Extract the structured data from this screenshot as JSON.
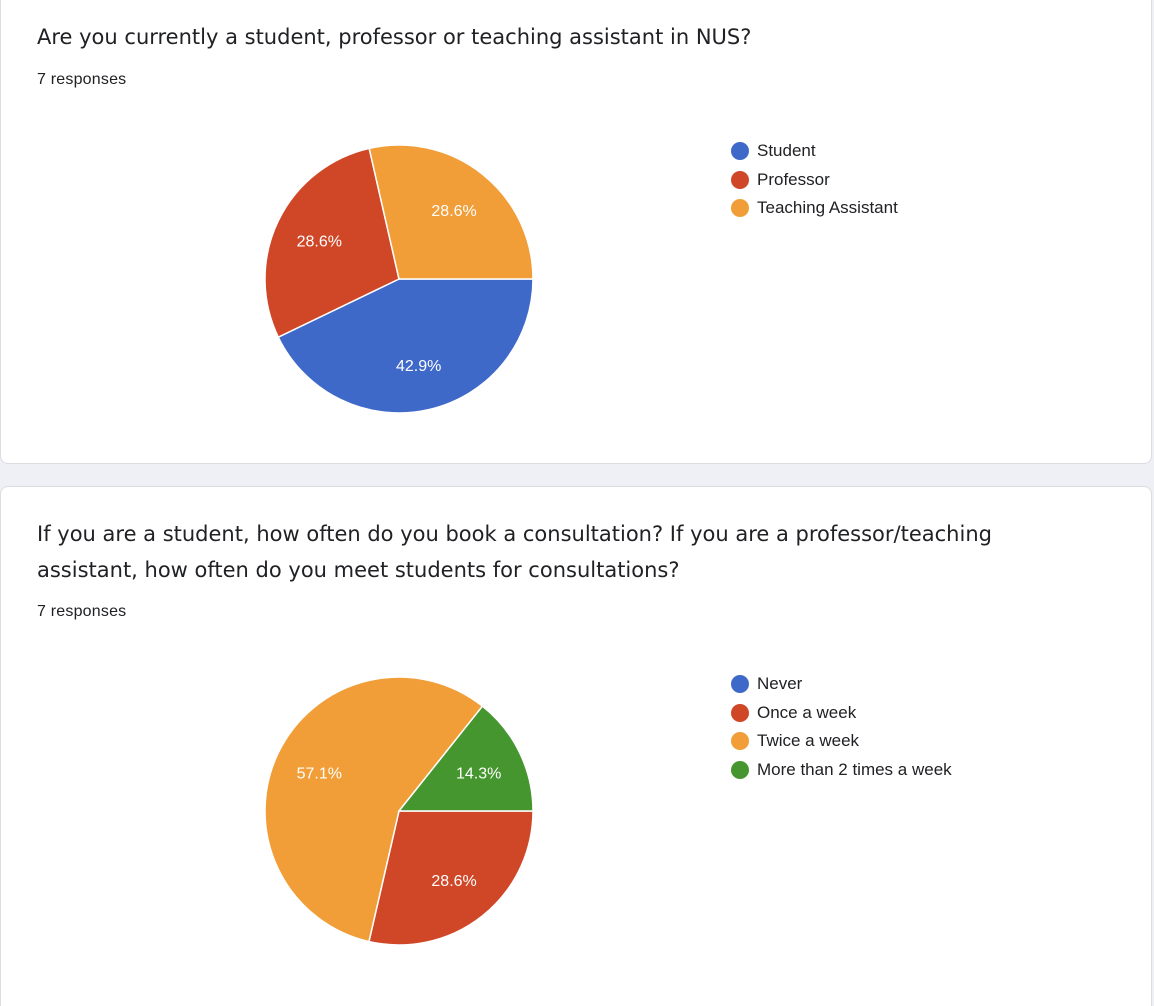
{
  "questions": [
    {
      "title": "Are you currently a student, professor or teaching assistant in NUS?",
      "responses": "7 responses"
    },
    {
      "title": "If you are a student, how often do you book a consultation? If you are a professor/teaching assistant, how often do you meet students for consultations?",
      "responses": "7 responses"
    }
  ],
  "chart_data": [
    {
      "type": "pie",
      "title": "Are you currently a student, professor or teaching assistant in NUS?",
      "categories": [
        "Student",
        "Professor",
        "Teaching Assistant"
      ],
      "values": [
        42.9,
        28.6,
        28.6
      ],
      "labels": [
        "42.9%",
        "28.6%",
        "28.6%"
      ],
      "colors": [
        "#3f69c9",
        "#d04728",
        "#f19e38"
      ],
      "legend_position": "right"
    },
    {
      "type": "pie",
      "title": "If you are a student, how often do you book a consultation? If you are a professor/teaching assistant, how often do you meet students for consultations?",
      "categories": [
        "Never",
        "Once a week",
        "Twice a week",
        "More than 2 times a week"
      ],
      "values": [
        0,
        28.6,
        57.1,
        14.3
      ],
      "labels": [
        "",
        "28.6%",
        "57.1%",
        "14.3%"
      ],
      "colors": [
        "#3f69c9",
        "#d04728",
        "#f19e38",
        "#45962f"
      ],
      "legend_position": "right"
    }
  ]
}
